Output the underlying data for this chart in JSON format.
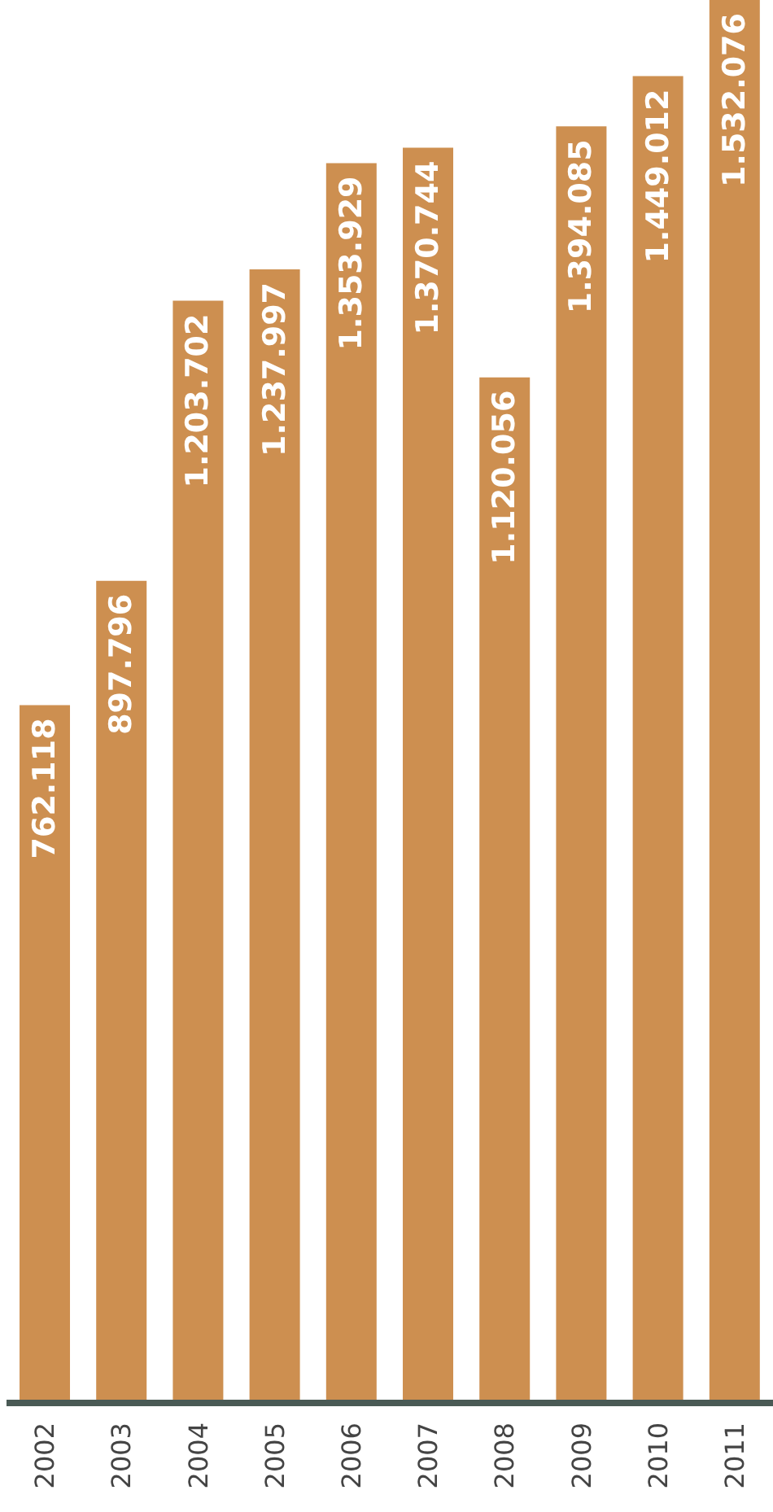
{
  "chart_data": {
    "type": "bar",
    "categories": [
      "2002",
      "2003",
      "2004",
      "2005",
      "2006",
      "2007",
      "2008",
      "2009",
      "2010",
      "2011"
    ],
    "values": [
      762118,
      897796,
      1203702,
      1237997,
      1353929,
      1370744,
      1120056,
      1394085,
      1449012,
      1532076
    ],
    "value_labels": [
      "762.118",
      "897.796",
      "1.203.702",
      "1.237.997",
      "1.353.929",
      "1.370.744",
      "1.120.056",
      "1.394.085",
      "1.449.012",
      "1.532.076"
    ],
    "color": "#cd8f50",
    "grid": false,
    "legend": false
  }
}
